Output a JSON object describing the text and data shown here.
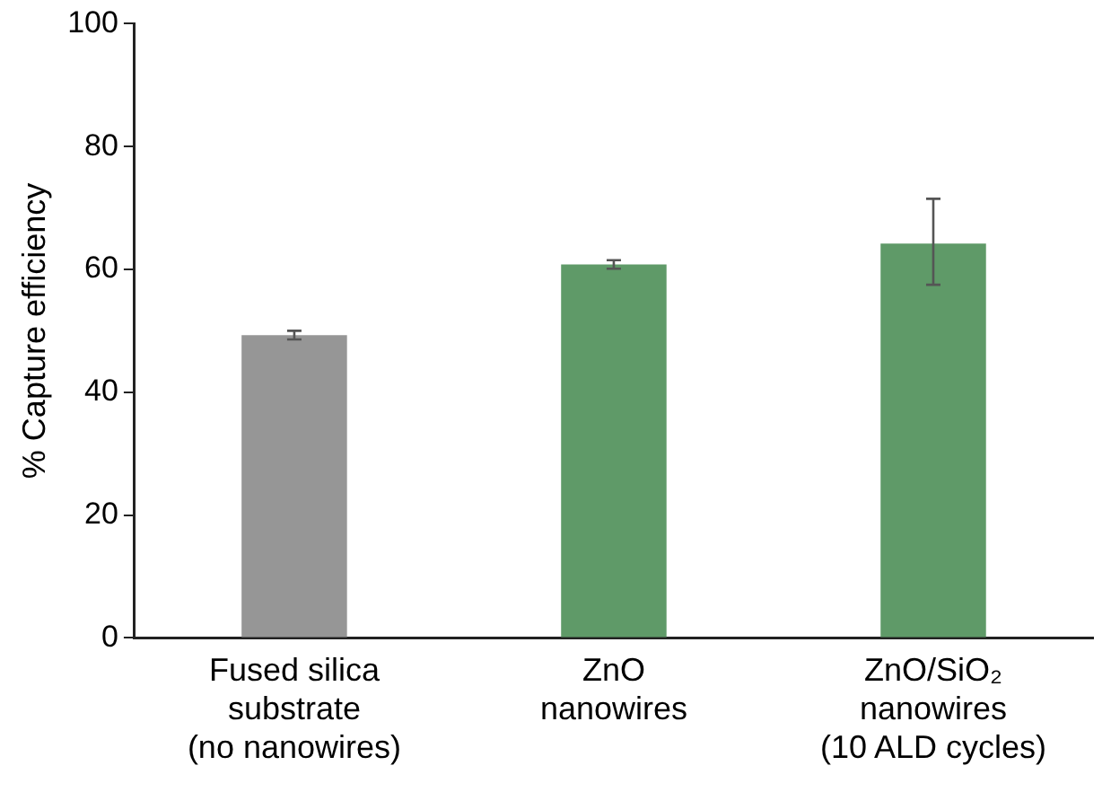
{
  "chart_data": {
    "type": "bar",
    "ylabel": "% Capture efficiency",
    "categories": [
      "Fused silica\nsubstrate\n(no nanowires)",
      "ZnO\nnanowires",
      "ZnO/SiO₂\nnanowires\n(10 ALD cycles)"
    ],
    "values": [
      49.3,
      60.8,
      64.2
    ],
    "colors": [
      "#969696",
      "#5f9a68",
      "#5f9a68"
    ],
    "errors": [
      0.7,
      0.7,
      [
        57.5,
        71.5
      ]
    ],
    "ylim": [
      0,
      100
    ],
    "yticks": [
      0,
      20,
      40,
      60,
      80,
      100
    ],
    "grid": false,
    "legend": false
  }
}
